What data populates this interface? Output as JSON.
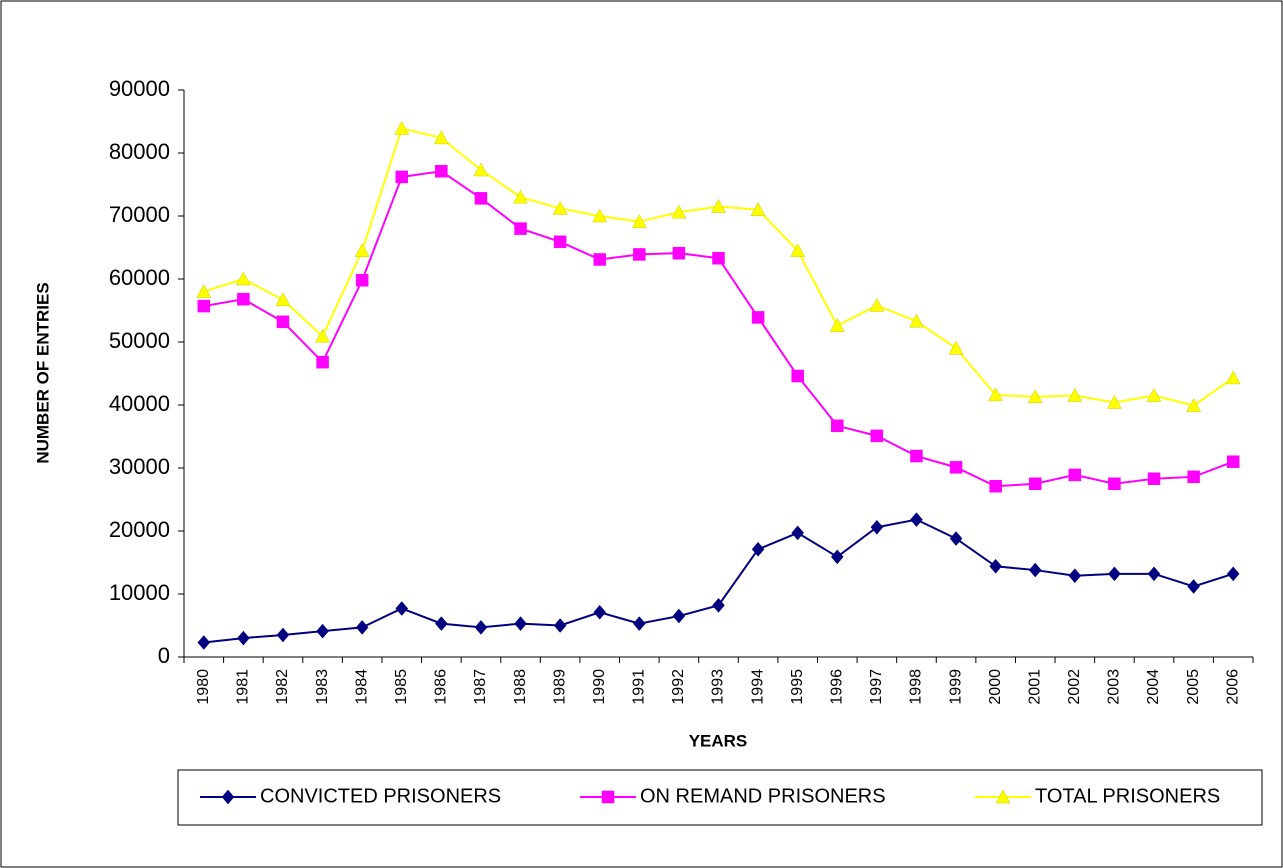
{
  "chart_data": {
    "type": "line",
    "xlabel": "YEARS",
    "ylabel": "NUMBER OF ENTRIES",
    "categories": [
      "1980",
      "1981",
      "1982",
      "1983",
      "1984",
      "1985",
      "1986",
      "1987",
      "1988",
      "1989",
      "1990",
      "1991",
      "1992",
      "1993",
      "1994",
      "1995",
      "1996",
      "1997",
      "1998",
      "1999",
      "2000",
      "2001",
      "2002",
      "2003",
      "2004",
      "2005",
      "2006"
    ],
    "series": [
      {
        "name": "CONVICTED PRISONERS",
        "color": "#000080",
        "marker": "diamond",
        "values": [
          2300,
          3000,
          3500,
          4100,
          4700,
          7700,
          5300,
          4700,
          5300,
          5000,
          7100,
          5300,
          6500,
          8200,
          17100,
          19700,
          15900,
          20600,
          21800,
          18800,
          14400,
          13800,
          12900,
          13200,
          13200,
          11200,
          13200
        ]
      },
      {
        "name": "ON REMAND PRISONERS",
        "color": "#ff00ff",
        "marker": "square",
        "values": [
          55700,
          56800,
          53200,
          46800,
          59800,
          76200,
          77100,
          72800,
          68000,
          65900,
          63100,
          63900,
          64100,
          63300,
          53900,
          44600,
          36700,
          35100,
          31900,
          30100,
          27100,
          27500,
          28900,
          27500,
          28300,
          28600,
          31000
        ]
      },
      {
        "name": "TOTAL PRISONERS",
        "color": "#ffff00",
        "marker": "triangle",
        "values": [
          58000,
          60000,
          56700,
          50900,
          64500,
          83900,
          82400,
          77300,
          73000,
          71200,
          70000,
          69100,
          70600,
          71500,
          71000,
          64500,
          52600,
          55800,
          53300,
          49000,
          41600,
          41300,
          41500,
          40400,
          41500,
          39900,
          44300
        ]
      }
    ],
    "ylim": [
      0,
      90000
    ],
    "yticks": [
      0,
      10000,
      20000,
      30000,
      40000,
      50000,
      60000,
      70000,
      80000,
      90000
    ],
    "grid": false,
    "legend": "bottom"
  }
}
